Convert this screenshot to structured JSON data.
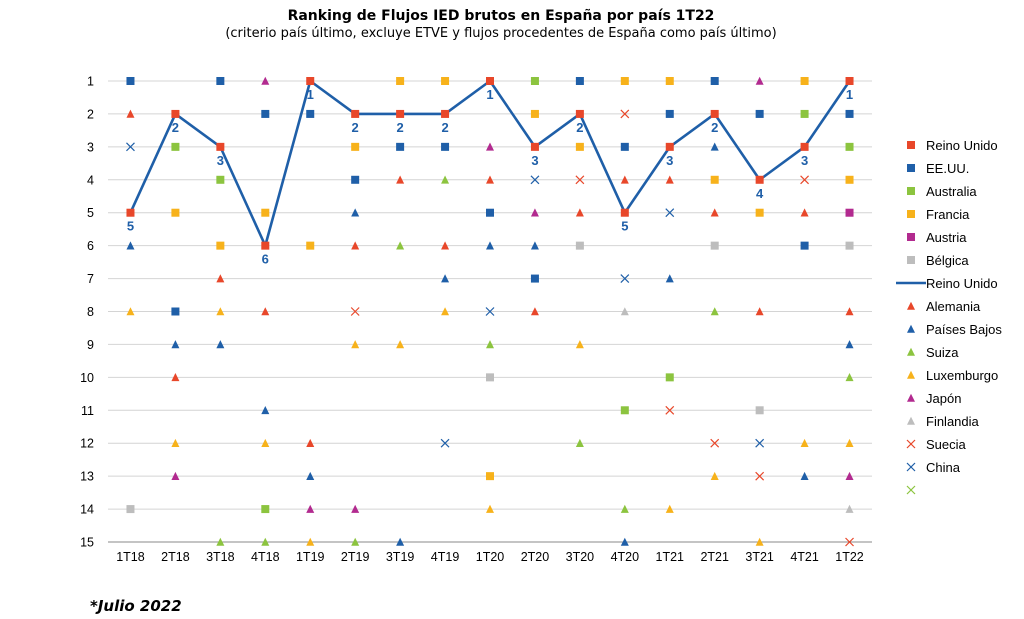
{
  "title": "Ranking de Flujos IED brutos en España por país 1T22",
  "subtitle": "(criterio país último, excluye ETVE y flujos procedentes de España como país último)",
  "footnote": "*Julio 2022",
  "chart_data": {
    "type": "scatter",
    "title": "Ranking de Flujos IED brutos en España por país 1T22",
    "subtitle": "(criterio país último, excluye ETVE y flujos procedentes de España como país último)",
    "xlabel": "",
    "ylabel": "",
    "categories": [
      "1T18",
      "2T18",
      "3T18",
      "4T18",
      "1T19",
      "2T19",
      "3T19",
      "4T19",
      "1T20",
      "2T20",
      "3T20",
      "4T20",
      "1T21",
      "2T21",
      "3T21",
      "4T21",
      "1T22"
    ],
    "y_ticks": [
      1,
      2,
      3,
      4,
      5,
      6,
      7,
      8,
      9,
      10,
      11,
      12,
      13,
      14,
      15
    ],
    "ylim": [
      1,
      15
    ],
    "y_reversed": true,
    "grid": "horizontal",
    "legend_position": "right",
    "series": [
      {
        "name": "Reino Unido",
        "marker": "square",
        "color": "#E8472A",
        "values": [
          5,
          2,
          3,
          6,
          1,
          2,
          2,
          2,
          1,
          3,
          2,
          5,
          3,
          2,
          4,
          3,
          1
        ]
      },
      {
        "name": "EE.UU.",
        "marker": "square",
        "color": "#1F5FA8",
        "values": [
          1,
          8,
          1,
          2,
          2,
          4,
          3,
          3,
          5,
          7,
          1,
          3,
          2,
          1,
          2,
          6,
          2
        ]
      },
      {
        "name": "Australia",
        "marker": "square",
        "color": "#8CC43F",
        "values": [
          null,
          3,
          4,
          14,
          null,
          null,
          null,
          null,
          null,
          1,
          null,
          11,
          10,
          null,
          null,
          2,
          3
        ]
      },
      {
        "name": "Francia",
        "marker": "square",
        "color": "#F7B21B",
        "values": [
          null,
          5,
          6,
          5,
          6,
          3,
          1,
          1,
          13,
          2,
          3,
          1,
          1,
          4,
          5,
          1,
          4
        ]
      },
      {
        "name": "Austria",
        "marker": "square",
        "color": "#B22A8F",
        "values": [
          null,
          null,
          null,
          null,
          null,
          null,
          null,
          null,
          null,
          null,
          null,
          null,
          null,
          null,
          null,
          null,
          5
        ]
      },
      {
        "name": "Bélgica",
        "marker": "square",
        "color": "#BDBDBD",
        "values": [
          14,
          null,
          null,
          null,
          null,
          null,
          null,
          null,
          10,
          null,
          6,
          null,
          null,
          6,
          11,
          null,
          6
        ]
      },
      {
        "name": "Reino Unido",
        "marker": "line",
        "color": "#1F5FA8",
        "values": [
          5,
          2,
          3,
          6,
          1,
          2,
          2,
          2,
          1,
          3,
          2,
          5,
          3,
          2,
          4,
          3,
          1
        ]
      },
      {
        "name": "Alemania",
        "marker": "triangle",
        "color": "#E8472A",
        "values": [
          2,
          10,
          7,
          8,
          12,
          6,
          4,
          6,
          4,
          8,
          5,
          4,
          4,
          5,
          8,
          5,
          8
        ]
      },
      {
        "name": "Países Bajos",
        "marker": "triangle",
        "color": "#1F5FA8",
        "values": [
          6,
          9,
          9,
          11,
          13,
          5,
          15,
          7,
          6,
          6,
          null,
          15,
          7,
          3,
          null,
          13,
          9
        ]
      },
      {
        "name": "Suiza",
        "marker": "triangle",
        "color": "#8CC43F",
        "values": [
          null,
          null,
          15,
          15,
          null,
          15,
          6,
          4,
          9,
          1,
          12,
          14,
          null,
          8,
          null,
          null,
          10
        ]
      },
      {
        "name": "Luxemburgo",
        "marker": "triangle",
        "color": "#F7B21B",
        "values": [
          8,
          12,
          8,
          12,
          15,
          9,
          9,
          8,
          14,
          null,
          9,
          null,
          14,
          13,
          15,
          12,
          12
        ]
      },
      {
        "name": "Japón",
        "marker": "triangle",
        "color": "#B22A8F",
        "values": [
          null,
          13,
          null,
          1,
          14,
          14,
          null,
          null,
          3,
          5,
          null,
          null,
          null,
          null,
          1,
          null,
          13
        ]
      },
      {
        "name": "Finlandia",
        "marker": "triangle",
        "color": "#BDBDBD",
        "values": [
          null,
          null,
          null,
          null,
          null,
          null,
          null,
          null,
          null,
          null,
          null,
          8,
          null,
          null,
          null,
          null,
          14
        ]
      },
      {
        "name": "Suecia",
        "marker": "x",
        "color": "#E8472A",
        "values": [
          null,
          null,
          null,
          null,
          null,
          8,
          null,
          null,
          null,
          null,
          4,
          2,
          11,
          12,
          13,
          4,
          15
        ]
      },
      {
        "name": "China",
        "marker": "x",
        "color": "#1F5FA8",
        "values": [
          3,
          null,
          null,
          null,
          null,
          null,
          null,
          12,
          8,
          4,
          null,
          7,
          5,
          null,
          12,
          null,
          null
        ]
      },
      {
        "name": "",
        "marker": "x",
        "color": "#8CC43F",
        "values": []
      }
    ],
    "point_labels": {
      "series": "Reino Unido",
      "color": "#1F5FA8",
      "values": [
        "5",
        "2",
        "3",
        "6",
        "1",
        "2",
        "2",
        "2",
        "1",
        "3",
        "2",
        "5",
        "3",
        "2",
        "4",
        "3",
        "1"
      ]
    }
  }
}
